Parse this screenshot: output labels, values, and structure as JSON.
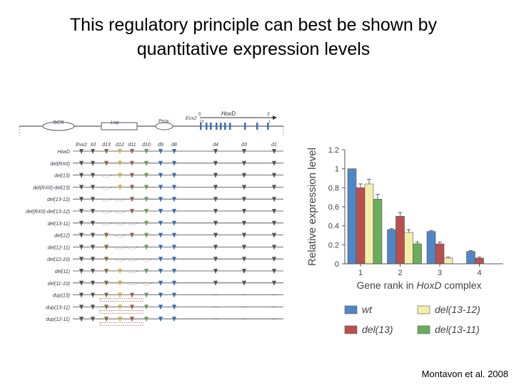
{
  "slide": {
    "title_line1": "This regulatory principle can best be shown by",
    "title_line2": "quantitative expression levels",
    "citation": "Montavon et al. 2008"
  },
  "diagram": {
    "top_labels": {
      "gcr": "GCR",
      "lnp": "Lnp",
      "prox": "Prox",
      "evx2": "Evx2",
      "hoxd": "HoxD",
      "e5": "5'",
      "e3": "3'",
      "n13": "13",
      "n1": "1"
    },
    "gene_labels": [
      "Evx2",
      "Xil",
      "d13",
      "d12",
      "d11",
      "d10",
      "d9",
      "d8",
      "d4",
      "d3",
      "d1"
    ],
    "rows": [
      "HoxD",
      "del(RXII)",
      "del(13)",
      "del(RXII)-del(13)",
      "del(13-12)",
      "del(RXII)-del(13-12)",
      "del(13-11)",
      "del(12)",
      "del(12-11)",
      "del(12-10)",
      "del(11)",
      "del(11-10)",
      "dup(13)",
      "dup(13-11)",
      "dup(12-11)"
    ]
  },
  "chart_data": {
    "type": "bar",
    "categories": [
      "1",
      "2",
      "3",
      "4"
    ],
    "xlabel": "Gene rank in HoxD complex",
    "xlabel_plain": "Gene rank in ",
    "xlabel_italic": "HoxD",
    "xlabel_tail": " complex",
    "ylabel": "Relative expression level",
    "ylim": [
      0,
      1.2
    ],
    "yticks": [
      "0",
      "0.2",
      "0.4",
      "0.6",
      "0.8",
      "1",
      "1.2"
    ],
    "series": [
      {
        "name": "wt",
        "color": "#4f86c6",
        "values": [
          1.0,
          0.36,
          0.34,
          0.13
        ],
        "errors": [
          0,
          0.01,
          0.01,
          0.01
        ]
      },
      {
        "name": "del(13)",
        "color": "#b9504d",
        "values": [
          0.8,
          0.5,
          0.21,
          0.06
        ],
        "errors": [
          0.04,
          0.04,
          0.02,
          0.01
        ]
      },
      {
        "name": "del(13-12)",
        "color": "#f5eeaa",
        "values": [
          0.84,
          0.33,
          0.06,
          0
        ],
        "errors": [
          0.05,
          0.03,
          0.01,
          0
        ]
      },
      {
        "name": "del(13-11)",
        "color": "#6aae5b",
        "values": [
          0.68,
          0.21,
          0,
          0
        ],
        "errors": [
          0.05,
          0.02,
          0,
          0
        ]
      }
    ],
    "legend_position": "bottom",
    "grid": false
  }
}
